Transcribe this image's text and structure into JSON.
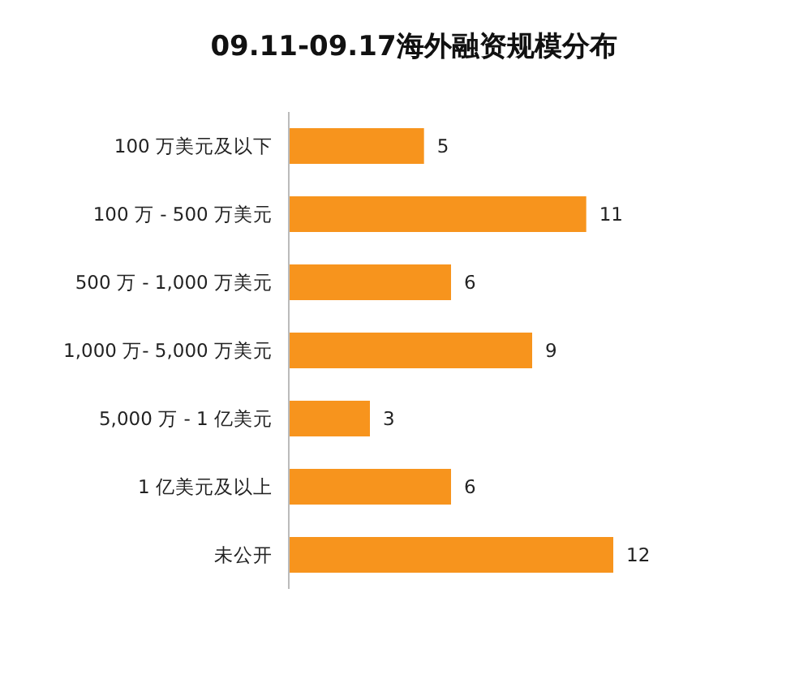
{
  "chart_data": {
    "type": "bar",
    "orientation": "horizontal",
    "title": "09.11-09.17海外融资规模分布",
    "categories": [
      "100 万美元及以下",
      "100 万 - 500 万美元",
      "500 万 - 1,000 万美元",
      "1,000 万- 5,000 万美元",
      "5,000 万 - 1 亿美元",
      "1 亿美元及以上",
      "未公开"
    ],
    "values": [
      5,
      11,
      6,
      9,
      3,
      6,
      12
    ],
    "color": "#f7941d",
    "data_labels": true
  }
}
